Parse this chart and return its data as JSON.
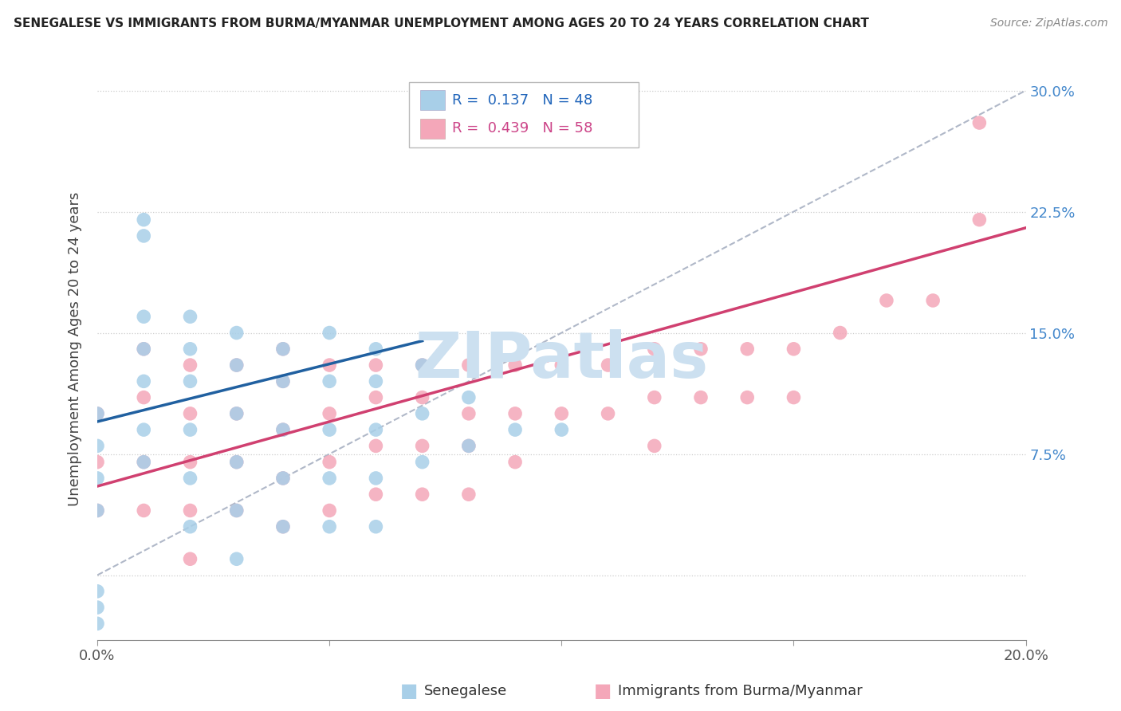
{
  "title": "SENEGALESE VS IMMIGRANTS FROM BURMA/MYANMAR UNEMPLOYMENT AMONG AGES 20 TO 24 YEARS CORRELATION CHART",
  "source": "Source: ZipAtlas.com",
  "ylabel": "Unemployment Among Ages 20 to 24 years",
  "x_min": 0.0,
  "x_max": 0.2,
  "y_min": -0.04,
  "y_max": 0.32,
  "color_blue": "#a8cfe8",
  "color_pink": "#f4a7b9",
  "color_blue_line": "#2060a0",
  "color_pink_line": "#d04070",
  "color_gray_dashed": "#b0b8c8",
  "watermark_color": "#cce0f0",
  "blue_x": [
    0.0,
    0.0,
    0.0,
    0.0,
    0.0,
    0.0,
    0.0,
    0.01,
    0.01,
    0.01,
    0.01,
    0.01,
    0.02,
    0.02,
    0.02,
    0.02,
    0.02,
    0.02,
    0.03,
    0.03,
    0.03,
    0.03,
    0.03,
    0.03,
    0.04,
    0.04,
    0.04,
    0.04,
    0.04,
    0.05,
    0.05,
    0.05,
    0.05,
    0.05,
    0.06,
    0.06,
    0.06,
    0.06,
    0.06,
    0.07,
    0.07,
    0.07,
    0.08,
    0.08,
    0.09,
    0.1,
    0.01,
    0.01
  ],
  "blue_y": [
    0.1,
    0.08,
    0.06,
    0.04,
    -0.01,
    -0.02,
    -0.03,
    0.16,
    0.14,
    0.12,
    0.09,
    0.07,
    0.16,
    0.14,
    0.12,
    0.09,
    0.06,
    0.03,
    0.15,
    0.13,
    0.1,
    0.07,
    0.04,
    0.01,
    0.14,
    0.12,
    0.09,
    0.06,
    0.03,
    0.15,
    0.12,
    0.09,
    0.06,
    0.03,
    0.14,
    0.12,
    0.09,
    0.06,
    0.03,
    0.13,
    0.1,
    0.07,
    0.11,
    0.08,
    0.09,
    0.09,
    0.22,
    0.21
  ],
  "pink_x": [
    0.0,
    0.0,
    0.0,
    0.01,
    0.01,
    0.01,
    0.01,
    0.02,
    0.02,
    0.02,
    0.02,
    0.02,
    0.03,
    0.03,
    0.03,
    0.03,
    0.04,
    0.04,
    0.04,
    0.04,
    0.04,
    0.05,
    0.05,
    0.05,
    0.05,
    0.06,
    0.06,
    0.06,
    0.06,
    0.07,
    0.07,
    0.07,
    0.07,
    0.08,
    0.08,
    0.08,
    0.08,
    0.09,
    0.09,
    0.09,
    0.1,
    0.1,
    0.11,
    0.11,
    0.12,
    0.12,
    0.12,
    0.13,
    0.13,
    0.14,
    0.14,
    0.15,
    0.15,
    0.16,
    0.17,
    0.18,
    0.19,
    0.19
  ],
  "pink_y": [
    0.1,
    0.07,
    0.04,
    0.14,
    0.11,
    0.07,
    0.04,
    0.13,
    0.1,
    0.07,
    0.04,
    0.01,
    0.13,
    0.1,
    0.07,
    0.04,
    0.14,
    0.12,
    0.09,
    0.06,
    0.03,
    0.13,
    0.1,
    0.07,
    0.04,
    0.13,
    0.11,
    0.08,
    0.05,
    0.13,
    0.11,
    0.08,
    0.05,
    0.13,
    0.1,
    0.08,
    0.05,
    0.13,
    0.1,
    0.07,
    0.13,
    0.1,
    0.13,
    0.1,
    0.14,
    0.11,
    0.08,
    0.14,
    0.11,
    0.14,
    0.11,
    0.14,
    0.11,
    0.15,
    0.17,
    0.17,
    0.22,
    0.28
  ],
  "blue_line_x0": 0.0,
  "blue_line_x1": 0.07,
  "blue_line_y0": 0.095,
  "blue_line_y1": 0.145,
  "pink_line_x0": 0.0,
  "pink_line_x1": 0.2,
  "pink_line_y0": 0.055,
  "pink_line_y1": 0.215,
  "gray_line_x0": 0.0,
  "gray_line_x1": 0.2,
  "gray_line_y0": 0.0,
  "gray_line_y1": 0.3
}
